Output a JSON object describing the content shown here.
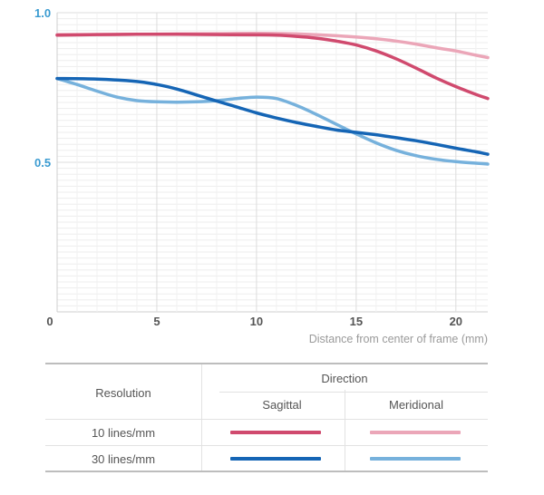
{
  "chart_data": {
    "type": "line",
    "xlabel": "Distance from center of frame (mm)",
    "ylabel": "",
    "xlim": [
      0,
      21.6
    ],
    "ylim": [
      0,
      1.0
    ],
    "x_ticks": [
      "0",
      "5",
      "10",
      "15",
      "20"
    ],
    "y_ticks": [
      "0.5",
      "1.0"
    ],
    "grid": "horizontal",
    "series": [
      {
        "name": "10 lines/mm Sagittal",
        "color": "#d04a6e",
        "x": [
          0,
          2,
          4,
          6,
          8,
          10,
          11,
          12,
          13,
          14,
          15,
          16,
          17,
          18,
          19,
          20,
          21,
          21.6
        ],
        "y": [
          0.925,
          0.927,
          0.928,
          0.928,
          0.927,
          0.926,
          0.925,
          0.921,
          0.915,
          0.905,
          0.892,
          0.872,
          0.846,
          0.815,
          0.782,
          0.753,
          0.727,
          0.713
        ]
      },
      {
        "name": "10 lines/mm Meridional",
        "color": "#eba6b8",
        "x": [
          0,
          2,
          4,
          6,
          8,
          10,
          12,
          14,
          16,
          17,
          18,
          19,
          20,
          21,
          21.6
        ],
        "y": [
          0.927,
          0.927,
          0.928,
          0.929,
          0.93,
          0.931,
          0.929,
          0.923,
          0.913,
          0.905,
          0.895,
          0.883,
          0.872,
          0.858,
          0.85
        ]
      },
      {
        "name": "30 lines/mm Sagittal",
        "color": "#1565b5",
        "x": [
          0,
          2,
          4,
          5,
          6,
          7,
          8,
          9,
          10,
          11,
          12,
          13,
          14,
          15,
          16,
          17,
          18,
          19,
          20,
          21,
          21.6
        ],
        "y": [
          0.78,
          0.778,
          0.77,
          0.76,
          0.745,
          0.725,
          0.705,
          0.685,
          0.665,
          0.648,
          0.633,
          0.62,
          0.608,
          0.6,
          0.592,
          0.582,
          0.572,
          0.56,
          0.547,
          0.535,
          0.527
        ]
      },
      {
        "name": "30 lines/mm Meridional",
        "color": "#76b1dc",
        "x": [
          0,
          1,
          2,
          3,
          4,
          5,
          6,
          7,
          8,
          9,
          10,
          11,
          12,
          13,
          14,
          15,
          16,
          17,
          18,
          19,
          20,
          21,
          21.6
        ],
        "y": [
          0.78,
          0.76,
          0.738,
          0.718,
          0.706,
          0.702,
          0.701,
          0.702,
          0.706,
          0.713,
          0.718,
          0.713,
          0.69,
          0.66,
          0.627,
          0.595,
          0.565,
          0.54,
          0.522,
          0.51,
          0.502,
          0.497,
          0.494
        ]
      }
    ]
  },
  "legend": {
    "resolution_header": "Resolution",
    "direction_header": "Direction",
    "sagittal": "Sagittal",
    "meridional": "Meridional",
    "rows": [
      "10 lines/mm",
      "30 lines/mm"
    ]
  }
}
